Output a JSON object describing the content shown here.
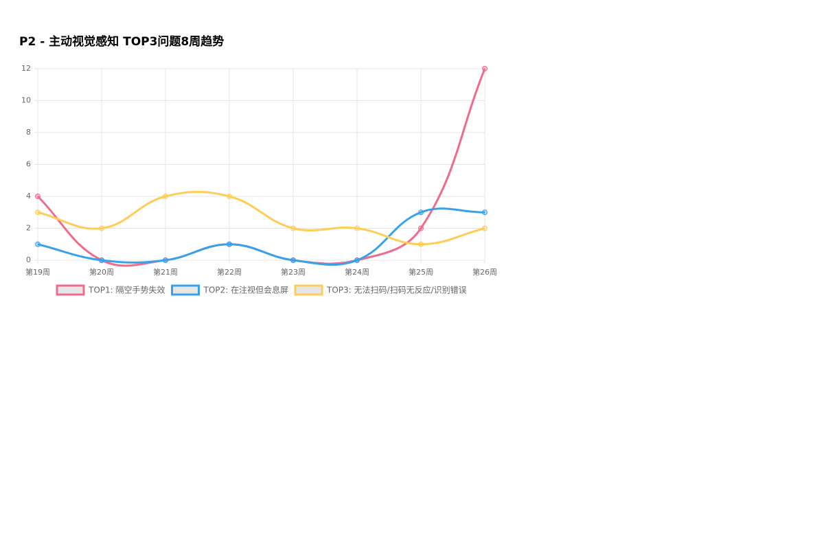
{
  "chart_data": {
    "type": "line",
    "title": "P2 - 主动视觉感知 TOP3问题8周趋势",
    "categories": [
      "第19周",
      "第20周",
      "第21周",
      "第22周",
      "第23周",
      "第24周",
      "第25周",
      "第26周"
    ],
    "series": [
      {
        "name": "TOP1: 隔空手势失效",
        "color": "#f06a8a",
        "values": [
          4,
          0,
          0,
          1,
          0,
          0,
          2,
          12
        ]
      },
      {
        "name": "TOP2: 在注视但会息屏",
        "color": "#36a2eb",
        "values": [
          1,
          0,
          0,
          1,
          0,
          0,
          3,
          3
        ]
      },
      {
        "name": "TOP3: 无法扫码/扫码无反应/识别错误",
        "color": "#ffcd56",
        "values": [
          3,
          2,
          4,
          4,
          2,
          2,
          1,
          2
        ]
      }
    ],
    "ylim": [
      0,
      12
    ],
    "yticks": [
      0,
      2,
      4,
      6,
      8,
      10,
      12
    ],
    "grid": true
  }
}
